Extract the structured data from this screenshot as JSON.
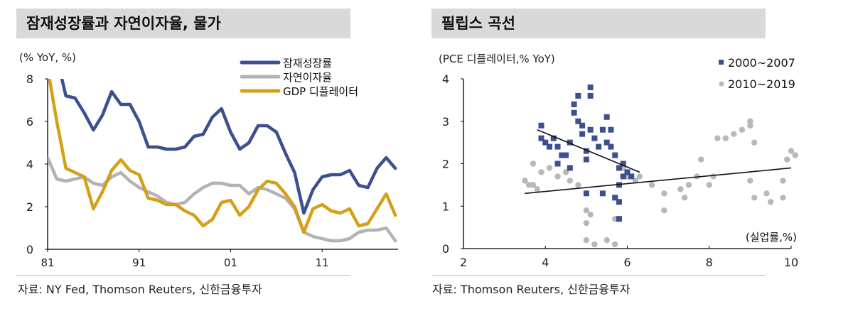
{
  "left_panel": {
    "title": "잠재성장률과 자연이자율, 물가",
    "unit": "(% YoY, %)",
    "source": "자료: NY Fed, Thomson Reuters, 신한금융투자"
  },
  "right_panel": {
    "title": "필립스 곡선",
    "unit": "(PCE 디플레이터,% YoY)",
    "x_unit": "(실업률,%)",
    "source": "자료: Thomson Reuters, 신한금융투자"
  },
  "colors": {
    "potential_growth": "#3c4f8f",
    "natural_rate": "#b3b3b3",
    "gdp_deflator": "#d4a017",
    "scatter_2000s": "#3c4f8f",
    "scatter_2010s": "#b8b8b8"
  },
  "chart_data": [
    {
      "type": "line",
      "title": "잠재성장률과 자연이자율, 물가",
      "ylabel": "(% YoY, %)",
      "xlabel": "",
      "x_ticks": [
        "81",
        "91",
        "01",
        "11"
      ],
      "y_ticks": [
        0,
        2,
        4,
        6,
        8
      ],
      "ylim": [
        0,
        8
      ],
      "legend": [
        "잠재성장률",
        "자연이자율",
        "GDP 디플레이터"
      ],
      "legend_position": "top-right",
      "x": [
        1981,
        1982,
        1983,
        1984,
        1985,
        1986,
        1987,
        1988,
        1989,
        1990,
        1991,
        1992,
        1993,
        1994,
        1995,
        1996,
        1997,
        1998,
        1999,
        2000,
        2001,
        2002,
        2003,
        2004,
        2005,
        2006,
        2007,
        2008,
        2009,
        2010,
        2011,
        2012,
        2013,
        2014,
        2015,
        2016,
        2017,
        2018,
        2019
      ],
      "series": [
        {
          "name": "잠재성장률",
          "values": [
            null,
            9.0,
            7.2,
            7.1,
            6.4,
            5.6,
            6.3,
            7.4,
            6.8,
            6.8,
            6.0,
            4.8,
            4.8,
            4.7,
            4.7,
            4.8,
            5.3,
            5.4,
            6.2,
            6.6,
            5.5,
            4.7,
            5.0,
            5.8,
            5.8,
            5.5,
            4.5,
            3.6,
            1.7,
            2.8,
            3.4,
            3.5,
            3.5,
            3.7,
            3.0,
            2.9,
            3.8,
            4.3,
            3.8
          ]
        },
        {
          "name": "자연이자율",
          "values": [
            4.3,
            3.3,
            3.2,
            3.3,
            3.4,
            3.1,
            3.0,
            3.4,
            3.6,
            3.2,
            2.9,
            2.7,
            2.5,
            2.2,
            2.1,
            2.2,
            2.6,
            2.9,
            3.1,
            3.1,
            3.0,
            3.0,
            2.6,
            2.9,
            2.8,
            2.6,
            2.4,
            1.9,
            0.8,
            0.6,
            0.5,
            0.4,
            0.4,
            0.5,
            0.8,
            0.9,
            0.9,
            1.0,
            0.4
          ]
        },
        {
          "name": "GDP 디플레이터",
          "values": [
            8.5,
            6.0,
            3.8,
            3.6,
            3.4,
            1.9,
            2.7,
            3.7,
            4.2,
            3.7,
            3.5,
            2.4,
            2.3,
            2.1,
            2.1,
            1.8,
            1.6,
            1.1,
            1.4,
            2.2,
            2.3,
            1.6,
            2.0,
            2.8,
            3.2,
            3.1,
            2.6,
            2.0,
            0.8,
            1.9,
            2.1,
            1.8,
            1.7,
            1.9,
            1.1,
            1.2,
            1.9,
            2.6,
            1.6
          ]
        }
      ]
    },
    {
      "type": "scatter",
      "title": "필립스 곡선",
      "ylabel": "(PCE 디플레이터,% YoY)",
      "xlabel": "(실업률,%)",
      "x_ticks": [
        2,
        4,
        6,
        8,
        10
      ],
      "y_ticks": [
        0,
        1,
        2,
        3,
        4
      ],
      "xlim": [
        2,
        10
      ],
      "ylim": [
        0,
        4
      ],
      "legend": [
        "2000~2007",
        "2010~2019"
      ],
      "legend_position": "top-right",
      "series": [
        {
          "name": "2000~2007",
          "marker": "square",
          "points": [
            [
              3.9,
              2.6
            ],
            [
              3.9,
              2.9
            ],
            [
              4.0,
              2.5
            ],
            [
              4.1,
              2.4
            ],
            [
              4.2,
              2.6
            ],
            [
              4.3,
              2.4
            ],
            [
              4.4,
              2.2
            ],
            [
              4.5,
              2.2
            ],
            [
              4.3,
              2.0
            ],
            [
              4.6,
              1.9
            ],
            [
              4.6,
              2.5
            ],
            [
              4.7,
              3.4
            ],
            [
              4.7,
              3.2
            ],
            [
              4.8,
              3.6
            ],
            [
              4.8,
              3.0
            ],
            [
              4.9,
              2.9
            ],
            [
              4.9,
              2.7
            ],
            [
              5.0,
              2.3
            ],
            [
              5.0,
              2.1
            ],
            [
              5.1,
              3.8
            ],
            [
              5.1,
              3.6
            ],
            [
              5.1,
              2.8
            ],
            [
              5.2,
              2.6
            ],
            [
              5.3,
              2.4
            ],
            [
              5.4,
              2.8
            ],
            [
              5.5,
              2.5
            ],
            [
              5.5,
              3.1
            ],
            [
              5.6,
              2.8
            ],
            [
              5.6,
              2.4
            ],
            [
              5.7,
              2.2
            ],
            [
              5.8,
              1.9
            ],
            [
              5.8,
              1.5
            ],
            [
              5.9,
              1.7
            ],
            [
              5.9,
              2.0
            ],
            [
              6.0,
              1.8
            ],
            [
              6.1,
              1.7
            ],
            [
              5.7,
              1.2
            ],
            [
              5.8,
              1.1
            ],
            [
              5.8,
              0.7
            ],
            [
              5.4,
              1.3
            ],
            [
              5.0,
              1.3
            ]
          ]
        },
        {
          "name": "2010~2019",
          "marker": "circle",
          "points": [
            [
              3.5,
              1.6
            ],
            [
              3.6,
              1.5
            ],
            [
              3.7,
              1.5
            ],
            [
              3.8,
              1.4
            ],
            [
              3.7,
              2.0
            ],
            [
              3.9,
              1.8
            ],
            [
              4.1,
              1.9
            ],
            [
              4.3,
              1.7
            ],
            [
              4.5,
              1.8
            ],
            [
              4.6,
              1.6
            ],
            [
              4.8,
              1.5
            ],
            [
              5.0,
              0.9
            ],
            [
              5.0,
              0.6
            ],
            [
              5.1,
              0.8
            ],
            [
              5.0,
              0.2
            ],
            [
              5.2,
              0.1
            ],
            [
              5.5,
              0.2
            ],
            [
              5.7,
              0.1
            ],
            [
              5.7,
              0.7
            ],
            [
              5.9,
              1.7
            ],
            [
              6.2,
              1.6
            ],
            [
              6.3,
              1.7
            ],
            [
              6.6,
              1.5
            ],
            [
              6.9,
              1.3
            ],
            [
              6.9,
              0.9
            ],
            [
              7.3,
              1.4
            ],
            [
              7.4,
              1.2
            ],
            [
              7.5,
              1.5
            ],
            [
              7.7,
              1.7
            ],
            [
              7.8,
              2.1
            ],
            [
              8.0,
              1.5
            ],
            [
              8.1,
              1.7
            ],
            [
              8.2,
              2.6
            ],
            [
              8.4,
              2.6
            ],
            [
              8.6,
              2.7
            ],
            [
              8.8,
              2.8
            ],
            [
              9.0,
              3.0
            ],
            [
              9.0,
              2.9
            ],
            [
              9.1,
              2.5
            ],
            [
              9.0,
              1.6
            ],
            [
              9.1,
              1.2
            ],
            [
              9.4,
              1.3
            ],
            [
              9.5,
              1.1
            ],
            [
              9.8,
              1.6
            ],
            [
              9.8,
              1.2
            ],
            [
              9.9,
              2.1
            ],
            [
              10.0,
              2.3
            ],
            [
              10.1,
              2.2
            ],
            [
              6.0,
              1.7
            ],
            [
              5.9,
              1.9
            ]
          ]
        }
      ],
      "trendlines": [
        {
          "series": "2000~2007",
          "from": [
            3.8,
            2.8
          ],
          "to": [
            6.3,
            1.8
          ]
        },
        {
          "series": "2010~2019",
          "from": [
            3.5,
            1.3
          ],
          "to": [
            10.0,
            1.9
          ]
        }
      ]
    }
  ]
}
